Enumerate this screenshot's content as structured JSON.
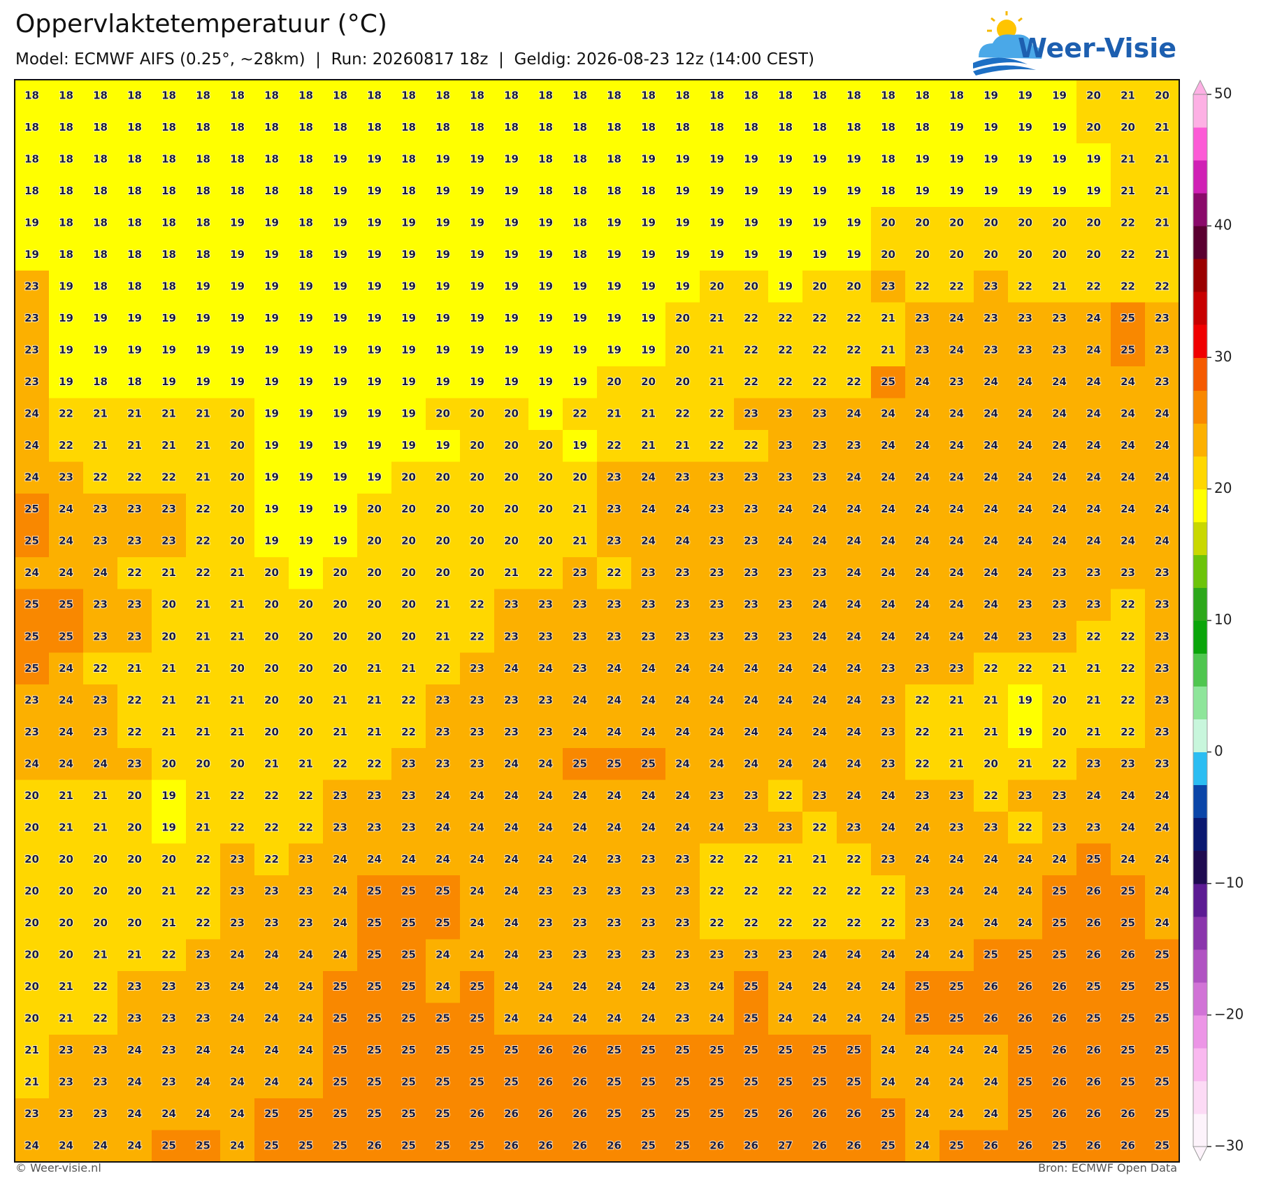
{
  "map": {
    "title": "Oppervlaktetemperatuur (°C)",
    "subtitle": "Model: ECMWF AIFS (0.25°, ~28km)  |  Run: 20260817 18z  |  Geldig: 2026-08-23 12z (14:00 CEST)",
    "logo": "Weer-Visie",
    "footer_left": "© Weer-visie.nl",
    "footer_right": "Bron: ECMWF Open Data",
    "colorbar": {
      "ticks": [
        50,
        40,
        30,
        20,
        10,
        0,
        {
          "value": -10,
          "label": "−10"
        },
        {
          "value": -20,
          "label": "−20"
        },
        {
          "value": -30,
          "label": "−30"
        }
      ],
      "colors": [
        "#fdf3fb",
        "#fcdaf5",
        "#f9b8ef",
        "#ec95e6",
        "#d173d6",
        "#b053c2",
        "#8a35ac",
        "#5c1b93",
        "#1e0a50",
        "#0a1870",
        "#0a45a8",
        "#2bbdf2",
        "#c8f6dc",
        "#8ee59a",
        "#4fc64f",
        "#0aa50a",
        "#2da81a",
        "#6cc40a",
        "#c9d800",
        "#ffff00",
        "#ffd700",
        "#fcb000",
        "#f98800",
        "#f55a00",
        "#f00000",
        "#c80000",
        "#9a0000",
        "#5a0030",
        "#8a0a6a",
        "#d020b5",
        "#fc5bd6",
        "#fdb0e4"
      ]
    },
    "grid": [
      [
        18,
        18,
        18,
        18,
        18,
        18,
        18,
        18,
        18,
        18,
        18,
        18,
        18,
        18,
        18,
        18,
        18,
        18,
        18,
        18,
        18,
        18,
        18,
        18,
        18,
        18,
        18,
        18,
        19,
        19,
        19,
        20,
        21,
        20
      ],
      [
        18,
        18,
        18,
        18,
        18,
        18,
        18,
        18,
        18,
        18,
        18,
        18,
        18,
        18,
        18,
        18,
        18,
        18,
        18,
        18,
        18,
        18,
        18,
        18,
        18,
        18,
        18,
        19,
        19,
        19,
        19,
        20,
        20,
        21
      ],
      [
        18,
        18,
        18,
        18,
        18,
        18,
        18,
        18,
        18,
        19,
        19,
        18,
        19,
        19,
        19,
        18,
        18,
        18,
        19,
        19,
        19,
        19,
        19,
        19,
        19,
        18,
        19,
        19,
        19,
        19,
        19,
        19,
        21,
        21
      ],
      [
        18,
        18,
        18,
        18,
        18,
        18,
        18,
        18,
        18,
        19,
        19,
        18,
        19,
        19,
        19,
        18,
        18,
        18,
        18,
        19,
        19,
        19,
        19,
        19,
        19,
        18,
        19,
        19,
        19,
        19,
        19,
        19,
        21,
        21
      ],
      [
        19,
        18,
        18,
        18,
        18,
        18,
        19,
        19,
        18,
        19,
        19,
        19,
        19,
        19,
        19,
        19,
        18,
        19,
        19,
        19,
        19,
        19,
        19,
        19,
        19,
        20,
        20,
        20,
        20,
        20,
        20,
        20,
        22,
        21
      ],
      [
        19,
        18,
        18,
        18,
        18,
        18,
        19,
        19,
        18,
        19,
        19,
        19,
        19,
        19,
        19,
        19,
        18,
        19,
        19,
        19,
        19,
        19,
        19,
        19,
        19,
        20,
        20,
        20,
        20,
        20,
        20,
        20,
        22,
        21
      ],
      [
        23,
        19,
        18,
        18,
        18,
        19,
        19,
        19,
        19,
        19,
        19,
        19,
        19,
        19,
        19,
        19,
        19,
        19,
        19,
        19,
        20,
        20,
        19,
        20,
        20,
        23,
        22,
        22,
        23,
        22,
        21,
        22,
        22,
        22
      ],
      [
        23,
        19,
        19,
        19,
        19,
        19,
        19,
        19,
        19,
        19,
        19,
        19,
        19,
        19,
        19,
        19,
        19,
        19,
        19,
        20,
        21,
        22,
        22,
        22,
        22,
        21,
        23,
        24,
        23,
        23,
        23,
        24,
        25,
        23
      ],
      [
        23,
        19,
        19,
        19,
        19,
        19,
        19,
        19,
        19,
        19,
        19,
        19,
        19,
        19,
        19,
        19,
        19,
        19,
        19,
        20,
        21,
        22,
        22,
        22,
        22,
        21,
        23,
        24,
        23,
        23,
        23,
        24,
        25,
        23
      ],
      [
        23,
        19,
        18,
        18,
        19,
        19,
        19,
        19,
        19,
        19,
        19,
        19,
        19,
        19,
        19,
        19,
        19,
        20,
        20,
        20,
        21,
        22,
        22,
        22,
        22,
        25,
        24,
        23,
        24,
        24,
        24,
        24,
        24,
        23
      ],
      [
        24,
        22,
        21,
        21,
        21,
        21,
        20,
        19,
        19,
        19,
        19,
        19,
        20,
        20,
        20,
        19,
        22,
        21,
        21,
        22,
        22,
        23,
        23,
        23,
        24,
        24,
        24,
        24,
        24,
        24,
        24,
        24,
        24,
        24
      ],
      [
        24,
        22,
        21,
        21,
        21,
        21,
        20,
        19,
        19,
        19,
        19,
        19,
        19,
        20,
        20,
        20,
        19,
        22,
        21,
        21,
        22,
        22,
        23,
        23,
        23,
        24,
        24,
        24,
        24,
        24,
        24,
        24,
        24,
        24
      ],
      [
        24,
        23,
        22,
        22,
        22,
        21,
        20,
        19,
        19,
        19,
        19,
        20,
        20,
        20,
        20,
        20,
        20,
        23,
        24,
        23,
        23,
        23,
        23,
        23,
        24,
        24,
        24,
        24,
        24,
        24,
        24,
        24,
        24,
        24
      ],
      [
        25,
        24,
        23,
        23,
        23,
        22,
        20,
        19,
        19,
        19,
        20,
        20,
        20,
        20,
        20,
        20,
        21,
        23,
        24,
        24,
        23,
        23,
        24,
        24,
        24,
        24,
        24,
        24,
        24,
        24,
        24,
        24,
        24,
        24
      ],
      [
        25,
        24,
        23,
        23,
        23,
        22,
        20,
        19,
        19,
        19,
        20,
        20,
        20,
        20,
        20,
        20,
        21,
        23,
        24,
        24,
        23,
        23,
        24,
        24,
        24,
        24,
        24,
        24,
        24,
        24,
        24,
        24,
        24,
        24
      ],
      [
        24,
        24,
        24,
        22,
        21,
        22,
        21,
        20,
        19,
        20,
        20,
        20,
        20,
        20,
        21,
        22,
        23,
        22,
        23,
        23,
        23,
        23,
        23,
        23,
        24,
        24,
        24,
        24,
        24,
        24,
        23,
        23,
        23,
        23
      ],
      [
        25,
        25,
        23,
        23,
        20,
        21,
        21,
        20,
        20,
        20,
        20,
        20,
        21,
        22,
        23,
        23,
        23,
        23,
        23,
        23,
        23,
        23,
        23,
        24,
        24,
        24,
        24,
        24,
        24,
        23,
        23,
        23,
        22,
        23
      ],
      [
        25,
        25,
        23,
        23,
        20,
        21,
        21,
        20,
        20,
        20,
        20,
        20,
        21,
        22,
        23,
        23,
        23,
        23,
        23,
        23,
        23,
        23,
        23,
        24,
        24,
        24,
        24,
        24,
        24,
        23,
        23,
        22,
        22,
        23
      ],
      [
        25,
        24,
        22,
        21,
        21,
        21,
        20,
        20,
        20,
        20,
        21,
        21,
        22,
        23,
        24,
        24,
        23,
        24,
        24,
        24,
        24,
        24,
        24,
        24,
        24,
        23,
        23,
        23,
        22,
        22,
        21,
        21,
        22,
        23
      ],
      [
        23,
        24,
        23,
        22,
        21,
        21,
        21,
        20,
        20,
        21,
        21,
        22,
        23,
        23,
        23,
        23,
        24,
        24,
        24,
        24,
        24,
        24,
        24,
        24,
        24,
        23,
        22,
        21,
        21,
        19,
        20,
        21,
        22,
        23
      ],
      [
        23,
        24,
        23,
        22,
        21,
        21,
        21,
        20,
        20,
        21,
        21,
        22,
        23,
        23,
        23,
        23,
        24,
        24,
        24,
        24,
        24,
        24,
        24,
        24,
        24,
        23,
        22,
        21,
        21,
        19,
        20,
        21,
        22,
        23
      ],
      [
        24,
        24,
        24,
        23,
        20,
        20,
        20,
        21,
        21,
        22,
        22,
        23,
        23,
        23,
        24,
        24,
        25,
        25,
        25,
        24,
        24,
        24,
        24,
        24,
        24,
        23,
        22,
        21,
        20,
        21,
        22,
        23,
        23,
        23
      ],
      [
        20,
        21,
        21,
        20,
        19,
        21,
        22,
        22,
        22,
        23,
        23,
        23,
        24,
        24,
        24,
        24,
        24,
        24,
        24,
        24,
        23,
        23,
        22,
        23,
        24,
        24,
        23,
        23,
        22,
        23,
        23,
        24,
        24,
        24
      ],
      [
        20,
        21,
        21,
        20,
        19,
        21,
        22,
        22,
        22,
        23,
        23,
        23,
        24,
        24,
        24,
        24,
        24,
        24,
        24,
        24,
        24,
        23,
        23,
        22,
        23,
        24,
        24,
        23,
        23,
        22,
        23,
        23,
        24,
        24
      ],
      [
        20,
        20,
        20,
        20,
        20,
        22,
        23,
        22,
        23,
        24,
        24,
        24,
        24,
        24,
        24,
        24,
        24,
        23,
        23,
        23,
        22,
        22,
        21,
        21,
        22,
        23,
        24,
        24,
        24,
        24,
        24,
        25,
        24,
        24
      ],
      [
        20,
        20,
        20,
        20,
        21,
        22,
        23,
        23,
        23,
        24,
        25,
        25,
        25,
        24,
        24,
        23,
        23,
        23,
        23,
        23,
        22,
        22,
        22,
        22,
        22,
        22,
        23,
        24,
        24,
        24,
        25,
        26,
        25,
        24
      ],
      [
        20,
        20,
        20,
        20,
        21,
        22,
        23,
        23,
        23,
        24,
        25,
        25,
        25,
        24,
        24,
        23,
        23,
        23,
        23,
        23,
        22,
        22,
        22,
        22,
        22,
        22,
        23,
        24,
        24,
        24,
        25,
        26,
        25,
        24
      ],
      [
        20,
        20,
        21,
        21,
        22,
        23,
        24,
        24,
        24,
        24,
        25,
        25,
        24,
        24,
        24,
        23,
        23,
        23,
        23,
        23,
        23,
        23,
        23,
        24,
        24,
        24,
        24,
        24,
        25,
        25,
        25,
        26,
        26,
        25
      ],
      [
        20,
        21,
        22,
        23,
        23,
        23,
        24,
        24,
        24,
        25,
        25,
        25,
        24,
        25,
        24,
        24,
        24,
        24,
        24,
        23,
        24,
        25,
        24,
        24,
        24,
        24,
        25,
        25,
        26,
        26,
        26,
        25,
        25,
        25
      ],
      [
        20,
        21,
        22,
        23,
        23,
        23,
        24,
        24,
        24,
        25,
        25,
        25,
        25,
        25,
        24,
        24,
        24,
        24,
        24,
        23,
        24,
        25,
        24,
        24,
        24,
        24,
        25,
        25,
        26,
        26,
        26,
        25,
        25,
        25
      ],
      [
        21,
        23,
        23,
        24,
        23,
        24,
        24,
        24,
        24,
        25,
        25,
        25,
        25,
        25,
        25,
        26,
        26,
        25,
        25,
        25,
        25,
        25,
        25,
        25,
        25,
        24,
        24,
        24,
        24,
        25,
        26,
        26,
        25,
        25
      ],
      [
        21,
        23,
        23,
        24,
        23,
        24,
        24,
        24,
        24,
        25,
        25,
        25,
        25,
        25,
        25,
        26,
        26,
        25,
        25,
        25,
        25,
        25,
        25,
        25,
        25,
        24,
        24,
        24,
        24,
        25,
        26,
        26,
        25,
        25
      ],
      [
        23,
        23,
        23,
        24,
        24,
        24,
        24,
        25,
        25,
        25,
        25,
        25,
        25,
        26,
        26,
        26,
        26,
        25,
        25,
        25,
        25,
        25,
        26,
        26,
        26,
        25,
        24,
        24,
        24,
        25,
        26,
        26,
        26,
        25
      ],
      [
        24,
        24,
        24,
        24,
        25,
        25,
        24,
        25,
        25,
        25,
        26,
        25,
        25,
        25,
        26,
        26,
        26,
        26,
        25,
        25,
        26,
        26,
        27,
        26,
        26,
        25,
        24,
        25,
        26,
        26,
        25,
        26,
        26,
        25
      ]
    ]
  }
}
